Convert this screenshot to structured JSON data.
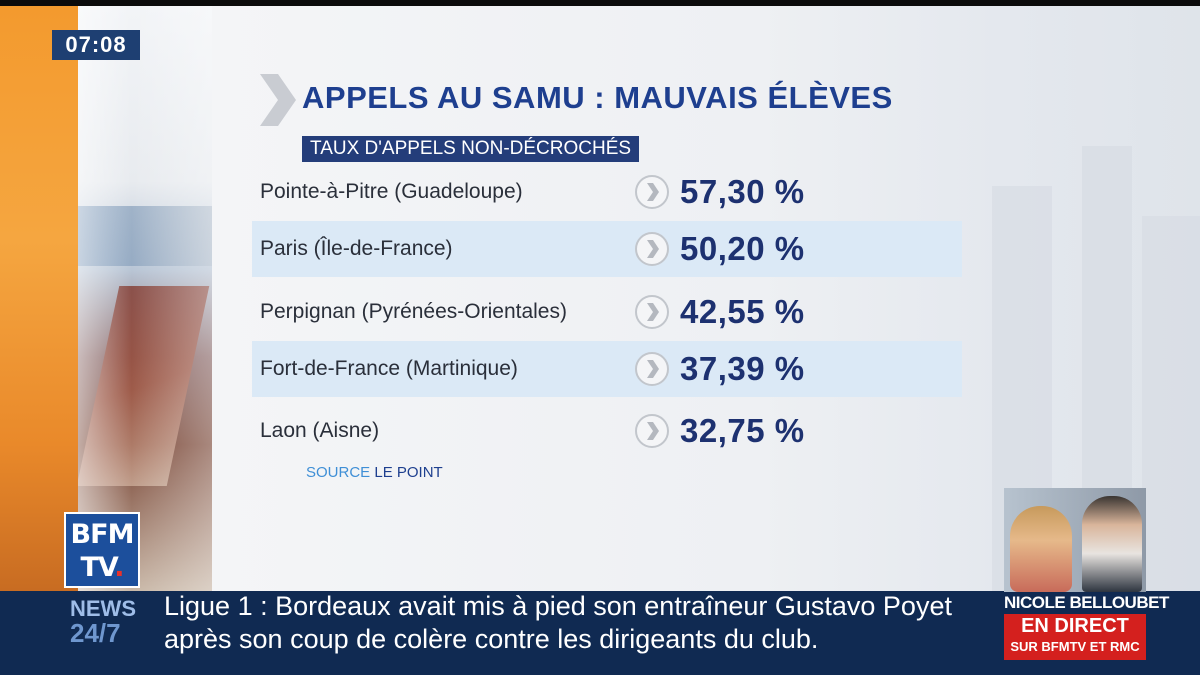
{
  "clock": "07:08",
  "title": "APPELS AU SAMU : MAUVAIS ÉLÈVES",
  "subtitle": "TAUX D'APPELS NON-DÉCROCHÉS",
  "rows": [
    {
      "label": "Pointe-à-Pitre (Guadeloupe)",
      "value": "57,30 %"
    },
    {
      "label": "Paris (Île-de-France)",
      "value": "50,20 %"
    },
    {
      "label": "Perpignan (Pyrénées-Orientales)",
      "value": "42,55 %"
    },
    {
      "label": "Fort-de-France (Martinique)",
      "value": "37,39 %"
    },
    {
      "label": "Laon (Aisne)",
      "value": "32,75 %"
    }
  ],
  "source": {
    "key": "SOURCE",
    "value": "LE POINT"
  },
  "logo": {
    "line1": "BFM",
    "line2": "TV",
    "dot": "."
  },
  "news_label": {
    "line1": "NEWS",
    "line2": "24/7"
  },
  "ticker": {
    "line1": "Ligue 1 : Bordeaux avait mis à pied son entraîneur Gustavo Poyet",
    "line2": "après son coup de colère contre les dirigeants du club."
  },
  "live": {
    "name": "NICOLE BELLOUBET",
    "status": "EN DIRECT",
    "channel": "SUR BFMTV ET RMC"
  },
  "colors": {
    "title": "#1e3f8f",
    "subtitle_bg": "#243d7a",
    "value": "#1d3170",
    "row_shade": "#dbe9f6",
    "ticker_bg": "#102a52",
    "live_red": "#d4201e",
    "orange": "#f39a2e"
  }
}
